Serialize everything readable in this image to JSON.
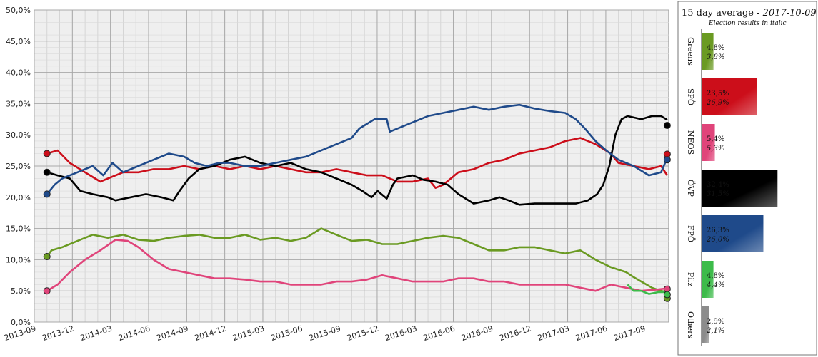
{
  "chart_data": {
    "type": "line",
    "yticks": [
      "0,0%",
      "5,0%",
      "10,0%",
      "15,0%",
      "20,0%",
      "25,0%",
      "30,0%",
      "35,0%",
      "40,0%",
      "45,0%",
      "50,0%"
    ],
    "ylim": [
      0,
      50
    ],
    "xticks": [
      "2013-09",
      "2013-12",
      "2014-03",
      "2014-06",
      "2014-09",
      "2014-12",
      "2015-03",
      "2015-06",
      "2015-09",
      "2015-12",
      "2016-03",
      "2016-06",
      "2016-09",
      "2016-12",
      "2017-03",
      "2017-06",
      "2017-09"
    ],
    "xlim": [
      2013.667,
      2017.83
    ],
    "grid": true,
    "series": [
      {
        "name": "Greens",
        "color": "#6a9a22",
        "points": [
          [
            2013.75,
            10.5
          ],
          [
            2013.78,
            11.5
          ],
          [
            2013.85,
            12
          ],
          [
            2013.95,
            13
          ],
          [
            2014.05,
            14
          ],
          [
            2014.15,
            13.5
          ],
          [
            2014.25,
            14
          ],
          [
            2014.35,
            13.2
          ],
          [
            2014.45,
            13
          ],
          [
            2014.55,
            13.5
          ],
          [
            2014.65,
            13.8
          ],
          [
            2014.75,
            14
          ],
          [
            2014.85,
            13.5
          ],
          [
            2014.95,
            13.5
          ],
          [
            2015.05,
            14
          ],
          [
            2015.15,
            13.2
          ],
          [
            2015.25,
            13.5
          ],
          [
            2015.35,
            13
          ],
          [
            2015.45,
            13.5
          ],
          [
            2015.55,
            15
          ],
          [
            2015.65,
            14
          ],
          [
            2015.75,
            13
          ],
          [
            2015.85,
            13.2
          ],
          [
            2015.95,
            12.5
          ],
          [
            2016.05,
            12.5
          ],
          [
            2016.15,
            13
          ],
          [
            2016.25,
            13.5
          ],
          [
            2016.35,
            13.8
          ],
          [
            2016.45,
            13.5
          ],
          [
            2016.55,
            12.5
          ],
          [
            2016.65,
            11.5
          ],
          [
            2016.75,
            11.5
          ],
          [
            2016.85,
            12
          ],
          [
            2016.95,
            12
          ],
          [
            2017.05,
            11.5
          ],
          [
            2017.15,
            11
          ],
          [
            2017.25,
            11.5
          ],
          [
            2017.35,
            10
          ],
          [
            2017.45,
            8.8
          ],
          [
            2017.55,
            8
          ],
          [
            2017.6,
            7.2
          ],
          [
            2017.65,
            6.5
          ],
          [
            2017.72,
            5.5
          ],
          [
            2017.78,
            5
          ],
          [
            2017.82,
            4.8
          ]
        ],
        "election": [
          [
            2013.75,
            10.5
          ],
          [
            2017.82,
            3.8
          ]
        ]
      },
      {
        "name": "SPÖ",
        "color": "#cc0e1a",
        "points": [
          [
            2013.75,
            27
          ],
          [
            2013.82,
            27.5
          ],
          [
            2013.9,
            25.5
          ],
          [
            2014.0,
            24
          ],
          [
            2014.1,
            22.5
          ],
          [
            2014.15,
            23
          ],
          [
            2014.25,
            24
          ],
          [
            2014.35,
            24
          ],
          [
            2014.45,
            24.5
          ],
          [
            2014.55,
            24.5
          ],
          [
            2014.65,
            25
          ],
          [
            2014.75,
            24.5
          ],
          [
            2014.85,
            25
          ],
          [
            2014.95,
            24.5
          ],
          [
            2015.05,
            25
          ],
          [
            2015.15,
            24.5
          ],
          [
            2015.25,
            25
          ],
          [
            2015.35,
            24.5
          ],
          [
            2015.45,
            24
          ],
          [
            2015.55,
            24
          ],
          [
            2015.65,
            24.5
          ],
          [
            2015.75,
            24
          ],
          [
            2015.85,
            23.5
          ],
          [
            2015.95,
            23.5
          ],
          [
            2016.05,
            22.5
          ],
          [
            2016.15,
            22.5
          ],
          [
            2016.25,
            23
          ],
          [
            2016.3,
            21.5
          ],
          [
            2016.35,
            22
          ],
          [
            2016.45,
            24
          ],
          [
            2016.55,
            24.5
          ],
          [
            2016.65,
            25.5
          ],
          [
            2016.75,
            26
          ],
          [
            2016.85,
            27
          ],
          [
            2016.95,
            27.5
          ],
          [
            2017.05,
            28
          ],
          [
            2017.15,
            29
          ],
          [
            2017.25,
            29.5
          ],
          [
            2017.35,
            28.5
          ],
          [
            2017.45,
            27
          ],
          [
            2017.5,
            25.5
          ],
          [
            2017.6,
            25
          ],
          [
            2017.7,
            24.5
          ],
          [
            2017.78,
            25
          ],
          [
            2017.82,
            23.5
          ]
        ],
        "election": [
          [
            2013.75,
            27
          ],
          [
            2017.82,
            26.9
          ]
        ]
      },
      {
        "name": "NEOS",
        "color": "#e0447a",
        "points": [
          [
            2013.75,
            5
          ],
          [
            2013.82,
            6
          ],
          [
            2013.9,
            8
          ],
          [
            2014.0,
            10
          ],
          [
            2014.1,
            11.5
          ],
          [
            2014.2,
            13.2
          ],
          [
            2014.28,
            13
          ],
          [
            2014.35,
            12
          ],
          [
            2014.45,
            10
          ],
          [
            2014.55,
            8.5
          ],
          [
            2014.65,
            8
          ],
          [
            2014.75,
            7.5
          ],
          [
            2014.85,
            7
          ],
          [
            2014.95,
            7
          ],
          [
            2015.05,
            6.8
          ],
          [
            2015.15,
            6.5
          ],
          [
            2015.25,
            6.5
          ],
          [
            2015.35,
            6
          ],
          [
            2015.45,
            6
          ],
          [
            2015.55,
            6
          ],
          [
            2015.65,
            6.5
          ],
          [
            2015.75,
            6.5
          ],
          [
            2015.85,
            6.8
          ],
          [
            2015.95,
            7.5
          ],
          [
            2016.05,
            7
          ],
          [
            2016.15,
            6.5
          ],
          [
            2016.25,
            6.5
          ],
          [
            2016.35,
            6.5
          ],
          [
            2016.45,
            7
          ],
          [
            2016.55,
            7
          ],
          [
            2016.65,
            6.5
          ],
          [
            2016.75,
            6.5
          ],
          [
            2016.85,
            6
          ],
          [
            2016.95,
            6
          ],
          [
            2017.05,
            6
          ],
          [
            2017.15,
            6
          ],
          [
            2017.25,
            5.5
          ],
          [
            2017.35,
            5
          ],
          [
            2017.45,
            6
          ],
          [
            2017.55,
            5.5
          ],
          [
            2017.65,
            5
          ],
          [
            2017.75,
            5.2
          ],
          [
            2017.82,
            5.4
          ]
        ],
        "election": [
          [
            2013.75,
            5
          ],
          [
            2017.82,
            5.3
          ]
        ]
      },
      {
        "name": "ÖVP",
        "color": "#000000",
        "points": [
          [
            2013.75,
            24
          ],
          [
            2013.82,
            23.5
          ],
          [
            2013.9,
            23
          ],
          [
            2013.97,
            21
          ],
          [
            2014.05,
            20.5
          ],
          [
            2014.15,
            20
          ],
          [
            2014.2,
            19.5
          ],
          [
            2014.3,
            20
          ],
          [
            2014.4,
            20.5
          ],
          [
            2014.5,
            20
          ],
          [
            2014.58,
            19.5
          ],
          [
            2014.62,
            21
          ],
          [
            2014.68,
            23
          ],
          [
            2014.75,
            24.5
          ],
          [
            2014.85,
            25
          ],
          [
            2014.95,
            26
          ],
          [
            2015.05,
            26.5
          ],
          [
            2015.15,
            25.5
          ],
          [
            2015.25,
            25
          ],
          [
            2015.35,
            25.5
          ],
          [
            2015.45,
            24.5
          ],
          [
            2015.55,
            24
          ],
          [
            2015.65,
            23
          ],
          [
            2015.75,
            22
          ],
          [
            2015.82,
            21
          ],
          [
            2015.88,
            20
          ],
          [
            2015.92,
            21
          ],
          [
            2015.98,
            19.8
          ],
          [
            2016.02,
            22
          ],
          [
            2016.05,
            23
          ],
          [
            2016.15,
            23.5
          ],
          [
            2016.22,
            22.8
          ],
          [
            2016.3,
            22.5
          ],
          [
            2016.38,
            22
          ],
          [
            2016.45,
            20.5
          ],
          [
            2016.55,
            19
          ],
          [
            2016.65,
            19.5
          ],
          [
            2016.72,
            20
          ],
          [
            2016.78,
            19.5
          ],
          [
            2016.85,
            18.8
          ],
          [
            2016.95,
            19
          ],
          [
            2017.05,
            19
          ],
          [
            2017.15,
            19
          ],
          [
            2017.22,
            19
          ],
          [
            2017.3,
            19.5
          ],
          [
            2017.36,
            20.5
          ],
          [
            2017.4,
            22
          ],
          [
            2017.44,
            25
          ],
          [
            2017.48,
            30
          ],
          [
            2017.52,
            32.5
          ],
          [
            2017.56,
            33
          ],
          [
            2017.65,
            32.5
          ],
          [
            2017.72,
            33
          ],
          [
            2017.78,
            33
          ],
          [
            2017.82,
            32.4
          ]
        ],
        "election": [
          [
            2013.75,
            24
          ],
          [
            2017.82,
            31.5
          ]
        ]
      },
      {
        "name": "FPÖ",
        "color": "#1f4a8a",
        "points": [
          [
            2013.75,
            20.5
          ],
          [
            2013.8,
            22
          ],
          [
            2013.85,
            23
          ],
          [
            2013.95,
            24
          ],
          [
            2014.05,
            25
          ],
          [
            2014.12,
            23.5
          ],
          [
            2014.18,
            25.5
          ],
          [
            2014.25,
            24
          ],
          [
            2014.35,
            25
          ],
          [
            2014.45,
            26
          ],
          [
            2014.55,
            27
          ],
          [
            2014.65,
            26.5
          ],
          [
            2014.72,
            25.5
          ],
          [
            2014.8,
            25
          ],
          [
            2014.88,
            25.5
          ],
          [
            2014.95,
            25.5
          ],
          [
            2015.05,
            25
          ],
          [
            2015.15,
            25
          ],
          [
            2015.25,
            25.5
          ],
          [
            2015.35,
            26
          ],
          [
            2015.45,
            26.5
          ],
          [
            2015.55,
            27.5
          ],
          [
            2015.65,
            28.5
          ],
          [
            2015.75,
            29.5
          ],
          [
            2015.8,
            31
          ],
          [
            2015.9,
            32.5
          ],
          [
            2015.98,
            32.5
          ],
          [
            2016.0,
            30.5
          ],
          [
            2016.05,
            31
          ],
          [
            2016.15,
            32
          ],
          [
            2016.25,
            33
          ],
          [
            2016.35,
            33.5
          ],
          [
            2016.45,
            34
          ],
          [
            2016.55,
            34.5
          ],
          [
            2016.65,
            34
          ],
          [
            2016.75,
            34.5
          ],
          [
            2016.85,
            34.8
          ],
          [
            2016.95,
            34.2
          ],
          [
            2017.05,
            33.8
          ],
          [
            2017.15,
            33.5
          ],
          [
            2017.22,
            32.5
          ],
          [
            2017.28,
            31
          ],
          [
            2017.35,
            29
          ],
          [
            2017.42,
            27.5
          ],
          [
            2017.5,
            26
          ],
          [
            2017.6,
            25
          ],
          [
            2017.7,
            23.5
          ],
          [
            2017.78,
            24
          ],
          [
            2017.82,
            26.3
          ]
        ],
        "election": [
          [
            2013.75,
            20.5
          ],
          [
            2017.82,
            26.0
          ]
        ]
      },
      {
        "name": "Pilz",
        "color": "#3dbb4a",
        "points": [
          [
            2017.56,
            6
          ],
          [
            2017.6,
            5
          ],
          [
            2017.65,
            5
          ],
          [
            2017.7,
            4.5
          ],
          [
            2017.76,
            4.8
          ],
          [
            2017.82,
            4.8
          ]
        ],
        "election": [
          [
            2017.82,
            4.4
          ]
        ]
      }
    ],
    "side_panel": {
      "title": "15 day average",
      "date": "2017-10-09",
      "subtitle": "Election results in italic",
      "bars": [
        {
          "name": "Greens",
          "current": 4.8,
          "election": 3.8,
          "current_label": "4,8%",
          "election_label": "3,8%",
          "color": "#6a9a22"
        },
        {
          "name": "SPÖ",
          "current": 23.5,
          "election": 26.9,
          "current_label": "23,5%",
          "election_label": "26,9%",
          "color": "#cc0e1a"
        },
        {
          "name": "NEOS",
          "current": 5.4,
          "election": 5.3,
          "current_label": "5,4%",
          "election_label": "5,3%",
          "color": "#e0447a"
        },
        {
          "name": "ÖVP",
          "current": 32.4,
          "election": 31.5,
          "current_label": "32,4%",
          "election_label": "31,5%",
          "color": "#000000"
        },
        {
          "name": "FPÖ",
          "current": 26.3,
          "election": 26.0,
          "current_label": "26,3%",
          "election_label": "26,0%",
          "color": "#1f4a8a"
        },
        {
          "name": "Pilz",
          "current": 4.8,
          "election": 4.4,
          "current_label": "4,8%",
          "election_label": "4,4%",
          "color": "#3dbb4a"
        },
        {
          "name": "Others",
          "current": 2.9,
          "election": 2.1,
          "current_label": "2,9%",
          "election_label": "2,1%",
          "color": "#8c8c8c"
        }
      ]
    }
  }
}
